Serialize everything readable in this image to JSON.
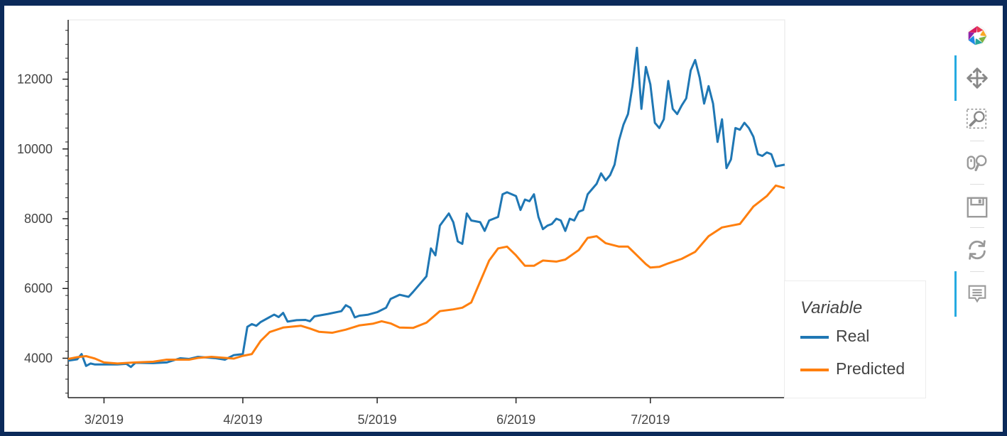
{
  "chart_data": {
    "type": "line",
    "legend_title": "Variable",
    "legend_position": "bottom-right",
    "x_tick_labels": [
      "3/2019",
      "4/2019",
      "5/2019",
      "6/2019",
      "7/2019"
    ],
    "x_ticks": [
      "2019-03-01",
      "2019-04-01",
      "2019-05-01",
      "2019-06-01",
      "2019-07-01"
    ],
    "x_range": [
      "2019-02-21",
      "2019-07-31"
    ],
    "y_tick_labels": [
      "4000",
      "6000",
      "8000",
      "10000",
      "12000"
    ],
    "y_ticks": [
      4000,
      6000,
      8000,
      10000,
      12000
    ],
    "ylim": [
      2870,
      13700
    ],
    "grid": false,
    "series": [
      {
        "name": "Real",
        "color": "#1f77b4",
        "points": [
          [
            "2019-02-21",
            3930
          ],
          [
            "2019-02-23",
            3970
          ],
          [
            "2019-02-24",
            4120
          ],
          [
            "2019-02-25",
            3780
          ],
          [
            "2019-02-26",
            3850
          ],
          [
            "2019-02-27",
            3820
          ],
          [
            "2019-03-04",
            3820
          ],
          [
            "2019-03-06",
            3840
          ],
          [
            "2019-03-07",
            3750
          ],
          [
            "2019-03-08",
            3870
          ],
          [
            "2019-03-12",
            3860
          ],
          [
            "2019-03-15",
            3880
          ],
          [
            "2019-03-18",
            4000
          ],
          [
            "2019-03-20",
            3980
          ],
          [
            "2019-03-22",
            4040
          ],
          [
            "2019-03-26",
            4000
          ],
          [
            "2019-03-28",
            3960
          ],
          [
            "2019-03-30",
            4090
          ],
          [
            "2019-04-01",
            4120
          ],
          [
            "2019-04-02",
            4900
          ],
          [
            "2019-04-03",
            4980
          ],
          [
            "2019-04-04",
            4930
          ],
          [
            "2019-04-05",
            5040
          ],
          [
            "2019-04-07",
            5180
          ],
          [
            "2019-04-08",
            5250
          ],
          [
            "2019-04-09",
            5180
          ],
          [
            "2019-04-10",
            5300
          ],
          [
            "2019-04-11",
            5050
          ],
          [
            "2019-04-13",
            5090
          ],
          [
            "2019-04-15",
            5100
          ],
          [
            "2019-04-16",
            5060
          ],
          [
            "2019-04-17",
            5200
          ],
          [
            "2019-04-20",
            5270
          ],
          [
            "2019-04-23",
            5350
          ],
          [
            "2019-04-24",
            5520
          ],
          [
            "2019-04-25",
            5450
          ],
          [
            "2019-04-26",
            5170
          ],
          [
            "2019-04-27",
            5220
          ],
          [
            "2019-04-29",
            5250
          ],
          [
            "2019-05-01",
            5320
          ],
          [
            "2019-05-03",
            5450
          ],
          [
            "2019-05-04",
            5700
          ],
          [
            "2019-05-06",
            5820
          ],
          [
            "2019-05-08",
            5760
          ],
          [
            "2019-05-09",
            5900
          ],
          [
            "2019-05-12",
            6350
          ],
          [
            "2019-05-13",
            7150
          ],
          [
            "2019-05-14",
            6950
          ],
          [
            "2019-05-15",
            7800
          ],
          [
            "2019-05-17",
            8150
          ],
          [
            "2019-05-18",
            7900
          ],
          [
            "2019-05-19",
            7350
          ],
          [
            "2019-05-20",
            7280
          ],
          [
            "2019-05-21",
            8150
          ],
          [
            "2019-05-22",
            7950
          ],
          [
            "2019-05-24",
            7900
          ],
          [
            "2019-05-25",
            7650
          ],
          [
            "2019-05-26",
            7950
          ],
          [
            "2019-05-28",
            8050
          ],
          [
            "2019-05-29",
            8700
          ],
          [
            "2019-05-30",
            8760
          ],
          [
            "2019-06-01",
            8650
          ],
          [
            "2019-06-02",
            8250
          ],
          [
            "2019-06-03",
            8550
          ],
          [
            "2019-06-04",
            8500
          ],
          [
            "2019-06-05",
            8700
          ],
          [
            "2019-06-06",
            8050
          ],
          [
            "2019-06-07",
            7700
          ],
          [
            "2019-06-08",
            7800
          ],
          [
            "2019-06-09",
            7850
          ],
          [
            "2019-06-10",
            8000
          ],
          [
            "2019-06-11",
            7950
          ],
          [
            "2019-06-12",
            7650
          ],
          [
            "2019-06-13",
            8000
          ],
          [
            "2019-06-14",
            7950
          ],
          [
            "2019-06-15",
            8200
          ],
          [
            "2019-06-16",
            8250
          ],
          [
            "2019-06-17",
            8700
          ],
          [
            "2019-06-19",
            9000
          ],
          [
            "2019-06-20",
            9300
          ],
          [
            "2019-06-21",
            9100
          ],
          [
            "2019-06-22",
            9250
          ],
          [
            "2019-06-23",
            9550
          ],
          [
            "2019-06-24",
            10250
          ],
          [
            "2019-06-25",
            10700
          ],
          [
            "2019-06-26",
            11000
          ],
          [
            "2019-06-27",
            11800
          ],
          [
            "2019-06-28",
            12900
          ],
          [
            "2019-06-29",
            11150
          ],
          [
            "2019-06-30",
            12350
          ],
          [
            "2019-07-01",
            11850
          ],
          [
            "2019-07-02",
            10750
          ],
          [
            "2019-07-03",
            10600
          ],
          [
            "2019-07-04",
            10850
          ],
          [
            "2019-07-05",
            11950
          ],
          [
            "2019-07-06",
            11150
          ],
          [
            "2019-07-07",
            11000
          ],
          [
            "2019-07-08",
            11250
          ],
          [
            "2019-07-09",
            11450
          ],
          [
            "2019-07-10",
            12250
          ],
          [
            "2019-07-11",
            12550
          ],
          [
            "2019-07-12",
            12050
          ],
          [
            "2019-07-13",
            11300
          ],
          [
            "2019-07-14",
            11800
          ],
          [
            "2019-07-15",
            11300
          ],
          [
            "2019-07-16",
            10200
          ],
          [
            "2019-07-17",
            10850
          ],
          [
            "2019-07-18",
            9450
          ],
          [
            "2019-07-19",
            9700
          ],
          [
            "2019-07-20",
            10600
          ],
          [
            "2019-07-21",
            10550
          ],
          [
            "2019-07-22",
            10750
          ],
          [
            "2019-07-23",
            10600
          ],
          [
            "2019-07-24",
            10350
          ],
          [
            "2019-07-25",
            9850
          ],
          [
            "2019-07-26",
            9800
          ],
          [
            "2019-07-27",
            9900
          ],
          [
            "2019-07-28",
            9850
          ],
          [
            "2019-07-29",
            9500
          ],
          [
            "2019-07-31",
            9550
          ]
        ]
      },
      {
        "name": "Predicted",
        "color": "#ff7f0e",
        "points": [
          [
            "2019-02-21",
            3980
          ],
          [
            "2019-02-23",
            4030
          ],
          [
            "2019-02-25",
            4060
          ],
          [
            "2019-02-27",
            3990
          ],
          [
            "2019-03-01",
            3880
          ],
          [
            "2019-03-04",
            3850
          ],
          [
            "2019-03-08",
            3880
          ],
          [
            "2019-03-12",
            3900
          ],
          [
            "2019-03-15",
            3960
          ],
          [
            "2019-03-20",
            3960
          ],
          [
            "2019-03-22",
            4010
          ],
          [
            "2019-03-25",
            4040
          ],
          [
            "2019-03-28",
            4010
          ],
          [
            "2019-03-30",
            3990
          ],
          [
            "2019-04-01",
            4070
          ],
          [
            "2019-04-03",
            4120
          ],
          [
            "2019-04-05",
            4500
          ],
          [
            "2019-04-07",
            4750
          ],
          [
            "2019-04-10",
            4880
          ],
          [
            "2019-04-14",
            4930
          ],
          [
            "2019-04-16",
            4850
          ],
          [
            "2019-04-18",
            4760
          ],
          [
            "2019-04-21",
            4730
          ],
          [
            "2019-04-24",
            4820
          ],
          [
            "2019-04-27",
            4940
          ],
          [
            "2019-04-30",
            4990
          ],
          [
            "2019-05-02",
            5060
          ],
          [
            "2019-05-04",
            5000
          ],
          [
            "2019-05-06",
            4880
          ],
          [
            "2019-05-09",
            4870
          ],
          [
            "2019-05-12",
            5020
          ],
          [
            "2019-05-15",
            5350
          ],
          [
            "2019-05-18",
            5400
          ],
          [
            "2019-05-20",
            5450
          ],
          [
            "2019-05-22",
            5600
          ],
          [
            "2019-05-24",
            6200
          ],
          [
            "2019-05-26",
            6800
          ],
          [
            "2019-05-28",
            7150
          ],
          [
            "2019-05-30",
            7200
          ],
          [
            "2019-06-01",
            6950
          ],
          [
            "2019-06-03",
            6650
          ],
          [
            "2019-06-05",
            6650
          ],
          [
            "2019-06-07",
            6800
          ],
          [
            "2019-06-10",
            6770
          ],
          [
            "2019-06-12",
            6830
          ],
          [
            "2019-06-15",
            7100
          ],
          [
            "2019-06-17",
            7450
          ],
          [
            "2019-06-19",
            7500
          ],
          [
            "2019-06-21",
            7300
          ],
          [
            "2019-06-24",
            7200
          ],
          [
            "2019-06-26",
            7200
          ],
          [
            "2019-06-28",
            6950
          ],
          [
            "2019-06-30",
            6700
          ],
          [
            "2019-07-01",
            6600
          ],
          [
            "2019-07-03",
            6620
          ],
          [
            "2019-07-05",
            6720
          ],
          [
            "2019-07-08",
            6850
          ],
          [
            "2019-07-11",
            7050
          ],
          [
            "2019-07-14",
            7500
          ],
          [
            "2019-07-17",
            7750
          ],
          [
            "2019-07-19",
            7800
          ],
          [
            "2019-07-21",
            7850
          ],
          [
            "2019-07-24",
            8350
          ],
          [
            "2019-07-27",
            8650
          ],
          [
            "2019-07-29",
            8950
          ],
          [
            "2019-07-31",
            8880
          ]
        ]
      }
    ]
  },
  "toolbar": {
    "logo": "bokeh-logo",
    "tools": [
      "pan-icon",
      "box-zoom-icon",
      "wheel-zoom-icon",
      "save-icon",
      "reset-icon",
      "hover-icon"
    ],
    "active_color": "#26aae1"
  }
}
